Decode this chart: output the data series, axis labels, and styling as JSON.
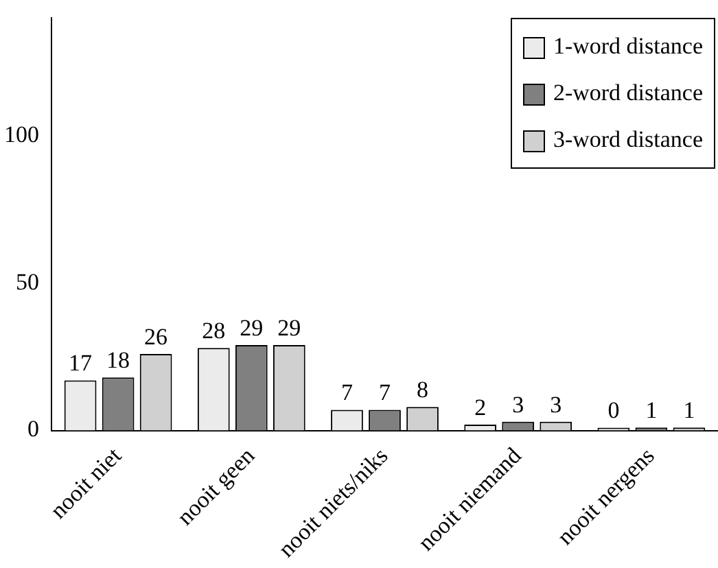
{
  "chart_data": {
    "type": "bar",
    "categories": [
      "nooit niet",
      "nooit geen",
      "nooit niets/niks",
      "nooit niemand",
      "nooit nergens"
    ],
    "series": [
      {
        "name": "1-word distance",
        "color": "#ebebeb",
        "values": [
          17,
          28,
          7,
          2,
          0
        ]
      },
      {
        "name": "2-word distance",
        "color": "#808080",
        "values": [
          18,
          29,
          7,
          3,
          1
        ]
      },
      {
        "name": "3-word distance",
        "color": "#d0d0d0",
        "values": [
          26,
          29,
          8,
          3,
          1
        ]
      }
    ],
    "ylim": [
      0,
      140
    ],
    "yticks": [
      0,
      50,
      100
    ],
    "grid": false,
    "legend": "top right",
    "data_labels": true
  }
}
